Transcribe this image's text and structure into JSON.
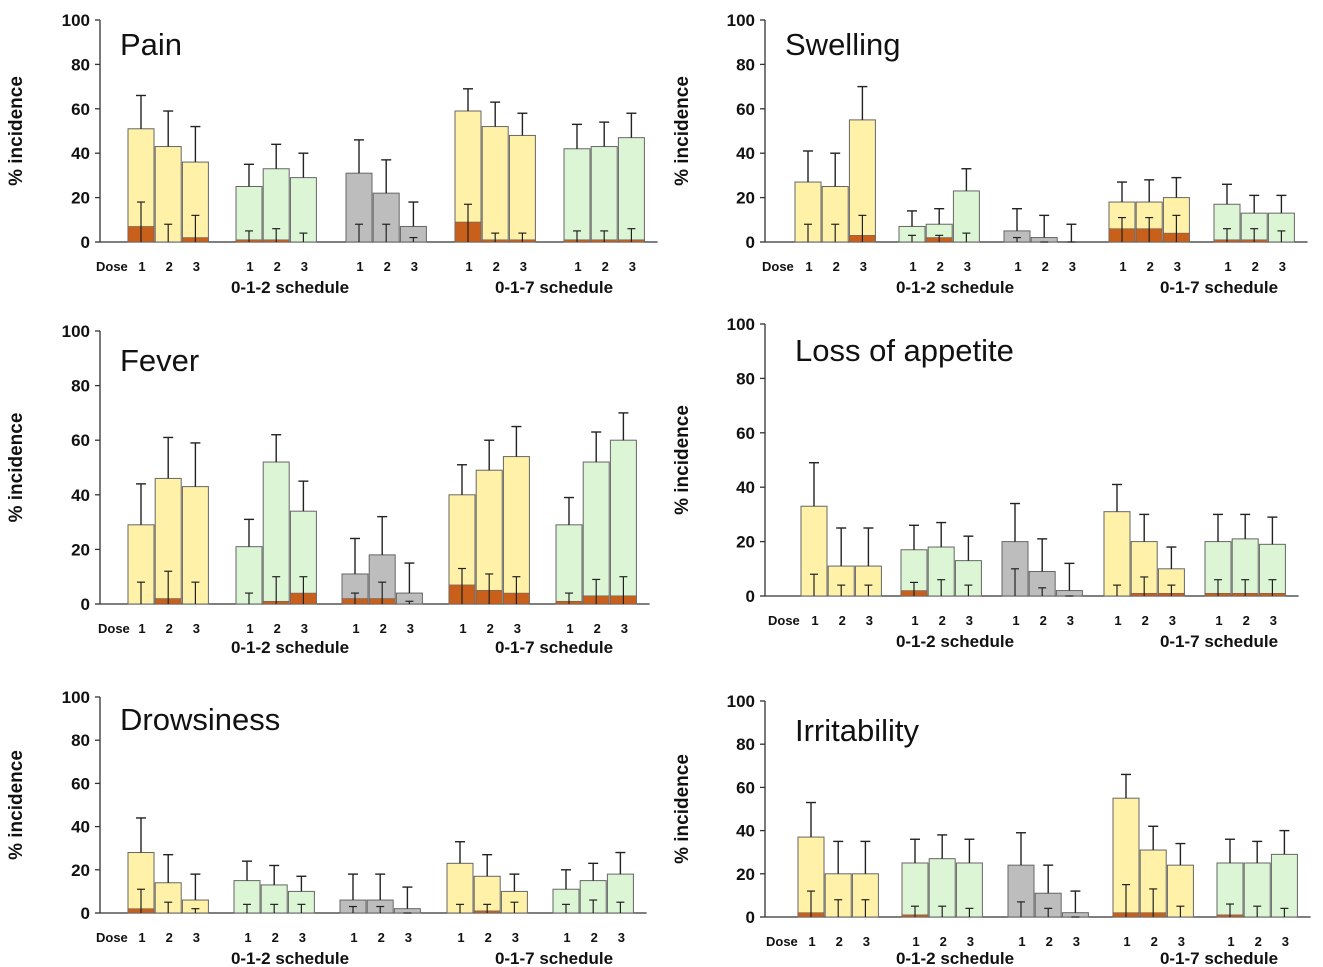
{
  "chart_data": [
    {
      "type": "bar",
      "title": "Pain",
      "ylabel": "% incidence",
      "ylim": [
        0,
        100
      ],
      "yticks": [
        0,
        20,
        40,
        60,
        80,
        100
      ],
      "dose_label": "Dose",
      "groups": [
        {
          "color": "#fff2a8",
          "values": [
            51,
            43,
            36
          ],
          "severe": [
            7,
            0,
            2
          ],
          "err_up": [
            66,
            59,
            52
          ],
          "err_low": [
            18,
            8,
            12
          ]
        },
        {
          "color": "#dcf5d4",
          "values": [
            25,
            33,
            29
          ],
          "severe": [
            1,
            1,
            0
          ],
          "err_up": [
            35,
            44,
            40
          ],
          "err_low": [
            5,
            6,
            4
          ]
        },
        {
          "color": "#bdbdbd",
          "values": [
            31,
            22,
            7
          ],
          "severe": [
            0,
            0,
            0
          ],
          "err_up": [
            46,
            37,
            18
          ],
          "err_low": [
            8,
            8,
            2
          ]
        },
        {
          "color": "#fff2a8",
          "values": [
            59,
            52,
            48
          ],
          "severe": [
            9,
            1,
            1
          ],
          "err_up": [
            69,
            63,
            58
          ],
          "err_low": [
            17,
            4,
            4
          ]
        },
        {
          "color": "#dcf5d4",
          "values": [
            42,
            43,
            47
          ],
          "severe": [
            1,
            1,
            1
          ],
          "err_up": [
            53,
            54,
            58
          ],
          "err_low": [
            5,
            5,
            6
          ]
        }
      ],
      "dose_numbers": [
        "1",
        "2",
        "3"
      ],
      "schedule_labels": [
        "0-1-2 schedule",
        "0-1-7 schedule"
      ]
    },
    {
      "type": "bar",
      "title": "Swelling",
      "ylabel": "% incidence",
      "ylim": [
        0,
        100
      ],
      "yticks": [
        0,
        20,
        40,
        60,
        80,
        100
      ],
      "dose_label": "Dose",
      "groups": [
        {
          "color": "#fff2a8",
          "values": [
            27,
            25,
            55
          ],
          "severe": [
            0,
            0,
            3
          ],
          "err_up": [
            41,
            40,
            70
          ],
          "err_low": [
            8,
            8,
            12
          ]
        },
        {
          "color": "#dcf5d4",
          "values": [
            7,
            8,
            23
          ],
          "severe": [
            0,
            2,
            0
          ],
          "err_up": [
            14,
            15,
            33
          ],
          "err_low": [
            3,
            3,
            4
          ]
        },
        {
          "color": "#bdbdbd",
          "values": [
            5,
            2,
            0
          ],
          "severe": [
            0,
            0,
            0
          ],
          "err_up": [
            15,
            12,
            8
          ],
          "err_low": [
            2,
            0,
            0
          ]
        },
        {
          "color": "#fff2a8",
          "values": [
            18,
            18,
            20
          ],
          "severe": [
            6,
            6,
            4
          ],
          "err_up": [
            27,
            28,
            29
          ],
          "err_low": [
            11,
            11,
            12
          ]
        },
        {
          "color": "#dcf5d4",
          "values": [
            17,
            13,
            13
          ],
          "severe": [
            1,
            1,
            0
          ],
          "err_up": [
            26,
            21,
            21
          ],
          "err_low": [
            6,
            6,
            5
          ]
        }
      ],
      "dose_numbers": [
        "1",
        "2",
        "3"
      ],
      "schedule_labels": [
        "0-1-2 schedule",
        "0-1-7 schedule"
      ]
    },
    {
      "type": "bar",
      "title": "Fever",
      "ylabel": "% incidence",
      "ylim": [
        0,
        100
      ],
      "yticks": [
        0,
        20,
        40,
        60,
        80,
        100
      ],
      "dose_label": "Dose",
      "groups": [
        {
          "color": "#fff2a8",
          "values": [
            29,
            46,
            43
          ],
          "severe": [
            0,
            2,
            0
          ],
          "err_up": [
            44,
            61,
            59
          ],
          "err_low": [
            8,
            12,
            8
          ]
        },
        {
          "color": "#dcf5d4",
          "values": [
            21,
            52,
            34
          ],
          "severe": [
            0,
            1,
            4
          ],
          "err_up": [
            31,
            62,
            45
          ],
          "err_low": [
            4,
            10,
            10
          ]
        },
        {
          "color": "#bdbdbd",
          "values": [
            11,
            18,
            4
          ],
          "severe": [
            2,
            2,
            0
          ],
          "err_up": [
            24,
            32,
            15
          ],
          "err_low": [
            4,
            8,
            1
          ]
        },
        {
          "color": "#fff2a8",
          "values": [
            40,
            49,
            54
          ],
          "severe": [
            7,
            5,
            4
          ],
          "err_up": [
            51,
            60,
            65
          ],
          "err_low": [
            13,
            11,
            10
          ]
        },
        {
          "color": "#dcf5d4",
          "values": [
            29,
            52,
            60
          ],
          "severe": [
            1,
            3,
            3
          ],
          "err_up": [
            39,
            63,
            70
          ],
          "err_low": [
            4,
            9,
            10
          ]
        }
      ],
      "dose_numbers": [
        "1",
        "2",
        "3"
      ],
      "schedule_labels": [
        "0-1-2 schedule",
        "0-1-7 schedule"
      ]
    },
    {
      "type": "bar",
      "title": "Loss of appetite",
      "ylabel": "% incidence",
      "ylim": [
        0,
        100
      ],
      "yticks": [
        0,
        20,
        40,
        60,
        80,
        100
      ],
      "dose_label": "Dose",
      "groups": [
        {
          "color": "#fff2a8",
          "values": [
            33,
            11,
            11
          ],
          "severe": [
            0,
            0,
            0
          ],
          "err_up": [
            49,
            25,
            25
          ],
          "err_low": [
            8,
            4,
            4
          ]
        },
        {
          "color": "#dcf5d4",
          "values": [
            17,
            18,
            13
          ],
          "severe": [
            2,
            0,
            0
          ],
          "err_up": [
            26,
            27,
            22
          ],
          "err_low": [
            5,
            6,
            4
          ]
        },
        {
          "color": "#bdbdbd",
          "values": [
            20,
            9,
            2
          ],
          "severe": [
            0,
            0,
            0
          ],
          "err_up": [
            34,
            21,
            12
          ],
          "err_low": [
            10,
            3,
            0
          ]
        },
        {
          "color": "#fff2a8",
          "values": [
            31,
            20,
            10
          ],
          "severe": [
            0,
            1,
            1
          ],
          "err_up": [
            41,
            30,
            18
          ],
          "err_low": [
            4,
            7,
            4
          ]
        },
        {
          "color": "#dcf5d4",
          "values": [
            20,
            21,
            19
          ],
          "severe": [
            1,
            1,
            1
          ],
          "err_up": [
            30,
            30,
            29
          ],
          "err_low": [
            6,
            6,
            6
          ]
        }
      ],
      "dose_numbers": [
        "1",
        "2",
        "3"
      ],
      "schedule_labels": [
        "0-1-2 schedule",
        "0-1-7 schedule"
      ]
    },
    {
      "type": "bar",
      "title": "Drowsiness",
      "ylabel": "% incidence",
      "ylim": [
        0,
        100
      ],
      "yticks": [
        0,
        20,
        40,
        60,
        80,
        100
      ],
      "dose_label": "Dose",
      "groups": [
        {
          "color": "#fff2a8",
          "values": [
            28,
            14,
            6
          ],
          "severe": [
            2,
            0,
            0
          ],
          "err_up": [
            44,
            27,
            18
          ],
          "err_low": [
            11,
            5,
            2
          ]
        },
        {
          "color": "#dcf5d4",
          "values": [
            15,
            13,
            10
          ],
          "severe": [
            0,
            0,
            0
          ],
          "err_up": [
            24,
            22,
            17
          ],
          "err_low": [
            4,
            4,
            4
          ]
        },
        {
          "color": "#bdbdbd",
          "values": [
            6,
            6,
            2
          ],
          "severe": [
            0,
            0,
            0
          ],
          "err_up": [
            18,
            18,
            12
          ],
          "err_low": [
            3,
            3,
            0
          ]
        },
        {
          "color": "#fff2a8",
          "values": [
            23,
            17,
            10
          ],
          "severe": [
            0,
            1,
            0
          ],
          "err_up": [
            33,
            27,
            18
          ],
          "err_low": [
            4,
            4,
            5
          ]
        },
        {
          "color": "#dcf5d4",
          "values": [
            11,
            15,
            18
          ],
          "severe": [
            0,
            0,
            0
          ],
          "err_up": [
            20,
            23,
            28
          ],
          "err_low": [
            4,
            6,
            5
          ]
        }
      ],
      "dose_numbers": [
        "1",
        "2",
        "3"
      ],
      "schedule_labels": [
        "0-1-2 schedule",
        "0-1-7 schedule"
      ]
    },
    {
      "type": "bar",
      "title": "Irritability",
      "ylabel": "% incidence",
      "ylim": [
        0,
        100
      ],
      "yticks": [
        0,
        20,
        40,
        60,
        80,
        100
      ],
      "dose_label": "Dose",
      "groups": [
        {
          "color": "#fff2a8",
          "values": [
            37,
            20,
            20
          ],
          "severe": [
            2,
            0,
            0
          ],
          "err_up": [
            53,
            35,
            35
          ],
          "err_low": [
            12,
            8,
            8
          ]
        },
        {
          "color": "#dcf5d4",
          "values": [
            25,
            27,
            25
          ],
          "severe": [
            1,
            0,
            0
          ],
          "err_up": [
            36,
            38,
            36
          ],
          "err_low": [
            5,
            5,
            4
          ]
        },
        {
          "color": "#bdbdbd",
          "values": [
            24,
            11,
            2
          ],
          "severe": [
            0,
            0,
            0
          ],
          "err_up": [
            39,
            24,
            12
          ],
          "err_low": [
            7,
            4,
            0
          ]
        },
        {
          "color": "#fff2a8",
          "values": [
            55,
            31,
            24
          ],
          "severe": [
            2,
            2,
            0
          ],
          "err_up": [
            66,
            42,
            34
          ],
          "err_low": [
            15,
            13,
            5
          ]
        },
        {
          "color": "#dcf5d4",
          "values": [
            25,
            25,
            29
          ],
          "severe": [
            1,
            0,
            0
          ],
          "err_up": [
            36,
            35,
            40
          ],
          "err_low": [
            6,
            5,
            4
          ]
        }
      ],
      "dose_numbers": [
        "1",
        "2",
        "3"
      ],
      "schedule_labels": [
        "0-1-2 schedule",
        "0-1-7 schedule"
      ]
    }
  ],
  "colors": {
    "severe": "#c8601c",
    "axis": "#333333",
    "bar_outline": "#666666"
  }
}
